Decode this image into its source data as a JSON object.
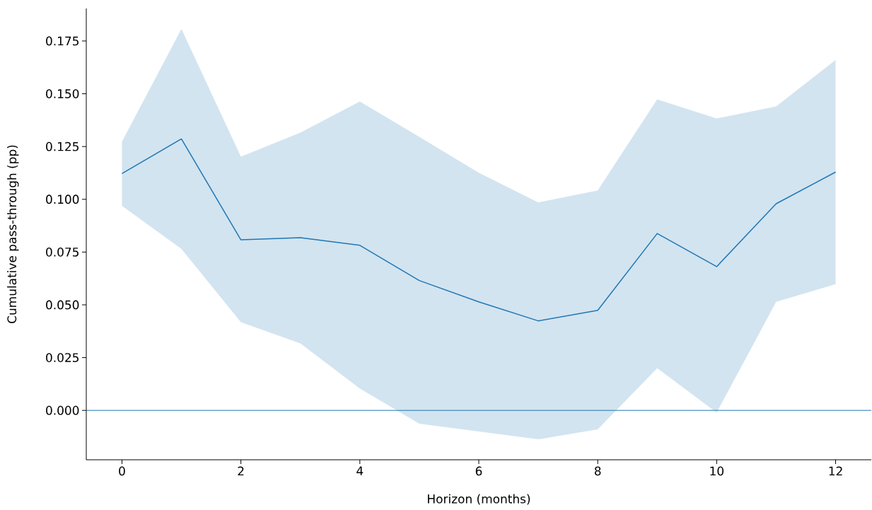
{
  "chart_data": {
    "type": "line",
    "xlabel": "Horizon (months)",
    "ylabel": "Cumulative pass-through (pp)",
    "x": [
      0,
      1,
      2,
      3,
      4,
      5,
      6,
      7,
      8,
      9,
      10,
      11,
      12
    ],
    "series": [
      {
        "color": "#1f77b4",
        "values": [
          0.1122,
          0.1286,
          0.0808,
          0.0818,
          0.0782,
          0.0615,
          0.0514,
          0.0424,
          0.0474,
          0.0838,
          0.0681,
          0.0979,
          0.1129
        ],
        "lower": [
          0.0969,
          0.0765,
          0.0418,
          0.0317,
          0.0104,
          -0.0063,
          -0.01,
          -0.0137,
          -0.009,
          0.02,
          -0.001,
          0.0514,
          0.0598
        ],
        "upper": [
          0.1273,
          0.1807,
          0.1202,
          0.1316,
          0.1463,
          0.1296,
          0.1126,
          0.0985,
          0.1042,
          0.1473,
          0.1383,
          0.144,
          0.166
        ]
      }
    ],
    "ref_lines": [
      {
        "axis": "y",
        "value": 0,
        "color": "#1f77b4"
      }
    ],
    "xlim": [
      -0.6,
      12.6
    ],
    "ylim": [
      -0.0234,
      0.1904
    ],
    "xticks": [
      0,
      2,
      4,
      6,
      8,
      10,
      12
    ],
    "yticks": [
      {
        "value": 0,
        "label": "0.000"
      },
      {
        "value": 0.025,
        "label": "0.025"
      },
      {
        "value": 0.05,
        "label": "0.050"
      },
      {
        "value": 0.075,
        "label": "0.075"
      },
      {
        "value": 0.1,
        "label": "0.100"
      },
      {
        "value": 0.125,
        "label": "0.125"
      },
      {
        "value": 0.15,
        "label": "0.150"
      },
      {
        "value": 0.175,
        "label": "0.175"
      }
    ],
    "grid": false,
    "marker": "none",
    "line_style": "solid"
  }
}
